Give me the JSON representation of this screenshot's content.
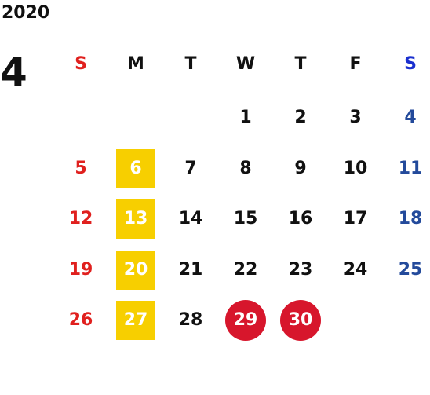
{
  "calendar": {
    "year": "2020",
    "month": "4",
    "colors": {
      "sunday": "#e0201e",
      "saturday_header": "#1a2fcf",
      "saturday": "#234a9b",
      "weekday": "#111111",
      "highlight_square": "#f7cf00",
      "highlight_circle": "#d7162c"
    },
    "weekdays": [
      {
        "label": "S",
        "kind": "sunday"
      },
      {
        "label": "M",
        "kind": "weekday"
      },
      {
        "label": "T",
        "kind": "weekday"
      },
      {
        "label": "W",
        "kind": "weekday"
      },
      {
        "label": "T",
        "kind": "weekday"
      },
      {
        "label": "F",
        "kind": "weekday"
      },
      {
        "label": "S",
        "kind": "saturday"
      }
    ],
    "weeks": [
      [
        {
          "day": "",
          "style": "none"
        },
        {
          "day": "",
          "style": "none"
        },
        {
          "day": "",
          "style": "none"
        },
        {
          "day": "1",
          "style": "none"
        },
        {
          "day": "2",
          "style": "none"
        },
        {
          "day": "3",
          "style": "none"
        },
        {
          "day": "4",
          "style": "none"
        }
      ],
      [
        {
          "day": "5",
          "style": "none"
        },
        {
          "day": "6",
          "style": "square"
        },
        {
          "day": "7",
          "style": "none"
        },
        {
          "day": "8",
          "style": "none"
        },
        {
          "day": "9",
          "style": "none"
        },
        {
          "day": "10",
          "style": "none"
        },
        {
          "day": "11",
          "style": "none"
        }
      ],
      [
        {
          "day": "12",
          "style": "none"
        },
        {
          "day": "13",
          "style": "square"
        },
        {
          "day": "14",
          "style": "none"
        },
        {
          "day": "15",
          "style": "none"
        },
        {
          "day": "16",
          "style": "none"
        },
        {
          "day": "17",
          "style": "none"
        },
        {
          "day": "18",
          "style": "none"
        }
      ],
      [
        {
          "day": "19",
          "style": "none"
        },
        {
          "day": "20",
          "style": "square"
        },
        {
          "day": "21",
          "style": "none"
        },
        {
          "day": "22",
          "style": "none"
        },
        {
          "day": "23",
          "style": "none"
        },
        {
          "day": "24",
          "style": "none"
        },
        {
          "day": "25",
          "style": "none"
        }
      ],
      [
        {
          "day": "26",
          "style": "none"
        },
        {
          "day": "27",
          "style": "square"
        },
        {
          "day": "28",
          "style": "none"
        },
        {
          "day": "29",
          "style": "circle"
        },
        {
          "day": "30",
          "style": "circle"
        },
        {
          "day": "",
          "style": "none"
        },
        {
          "day": "",
          "style": "none"
        }
      ]
    ]
  }
}
